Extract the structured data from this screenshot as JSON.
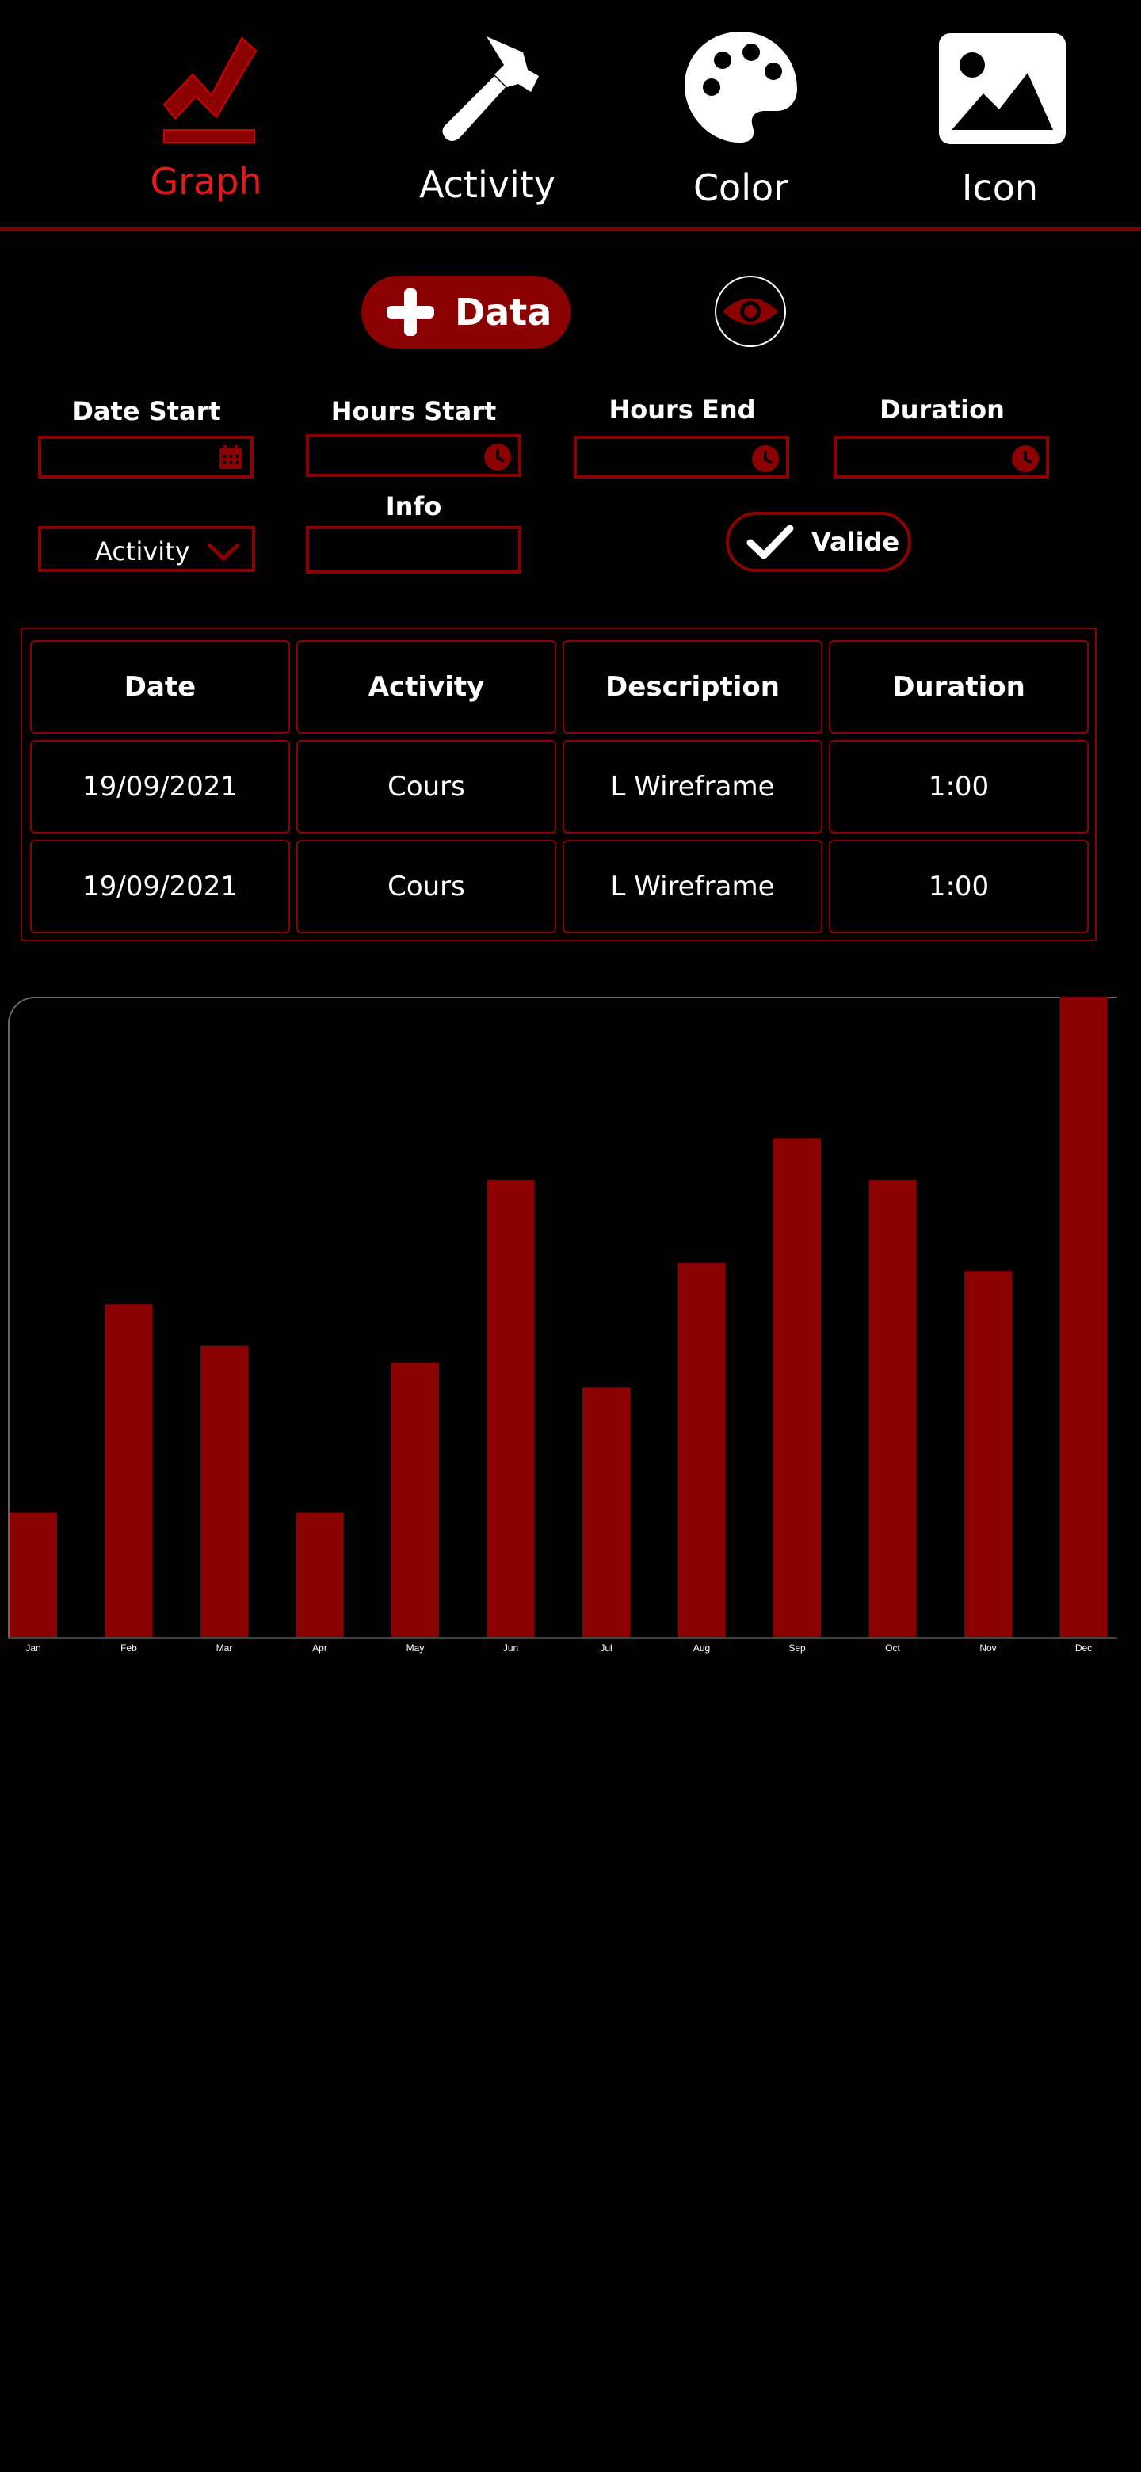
{
  "nav": {
    "items": [
      {
        "label": "Graph",
        "icon": "graph-icon",
        "active": true
      },
      {
        "label": "Activity",
        "icon": "hammer-icon",
        "active": false
      },
      {
        "label": "Color",
        "icon": "palette-icon",
        "active": false
      },
      {
        "label": "Icon",
        "icon": "image-icon",
        "active": false
      }
    ]
  },
  "actions": {
    "add_label": "Data",
    "add_icon": "plus-icon",
    "view_icon": "eye-icon"
  },
  "form": {
    "date_start_label": "Date Start",
    "hours_start_label": "Hours Start",
    "hours_end_label": "Hours End",
    "duration_label": "Duration",
    "info_label": "Info",
    "activity_select_value": "Activity",
    "valide_label": "Valide",
    "date_start_value": "",
    "hours_start_value": "",
    "hours_end_value": "",
    "duration_value": "",
    "info_value": ""
  },
  "table": {
    "headers": [
      "Date",
      "Activity",
      "Description",
      "Duration"
    ],
    "rows": [
      [
        "19/09/2021",
        "Cours",
        "L Wireframe",
        "1:00"
      ],
      [
        "19/09/2021",
        "Cours",
        "L Wireframe",
        "1:00"
      ]
    ]
  },
  "colors": {
    "accent": "#8b0000",
    "active_label": "#e11a1a",
    "background": "#000000",
    "text": "#ffffff"
  },
  "chart_data": {
    "type": "bar",
    "categories": [
      "Jan",
      "Feb",
      "Mar",
      "Apr",
      "May",
      "Jun",
      "Jul",
      "Aug",
      "Sep",
      "Oct",
      "Nov",
      "Dec"
    ],
    "values": [
      15,
      40,
      35,
      15,
      33,
      55,
      30,
      45,
      60,
      55,
      44,
      77
    ],
    "ylim": [
      0,
      77
    ],
    "grid": false,
    "color": "#8b0000"
  }
}
